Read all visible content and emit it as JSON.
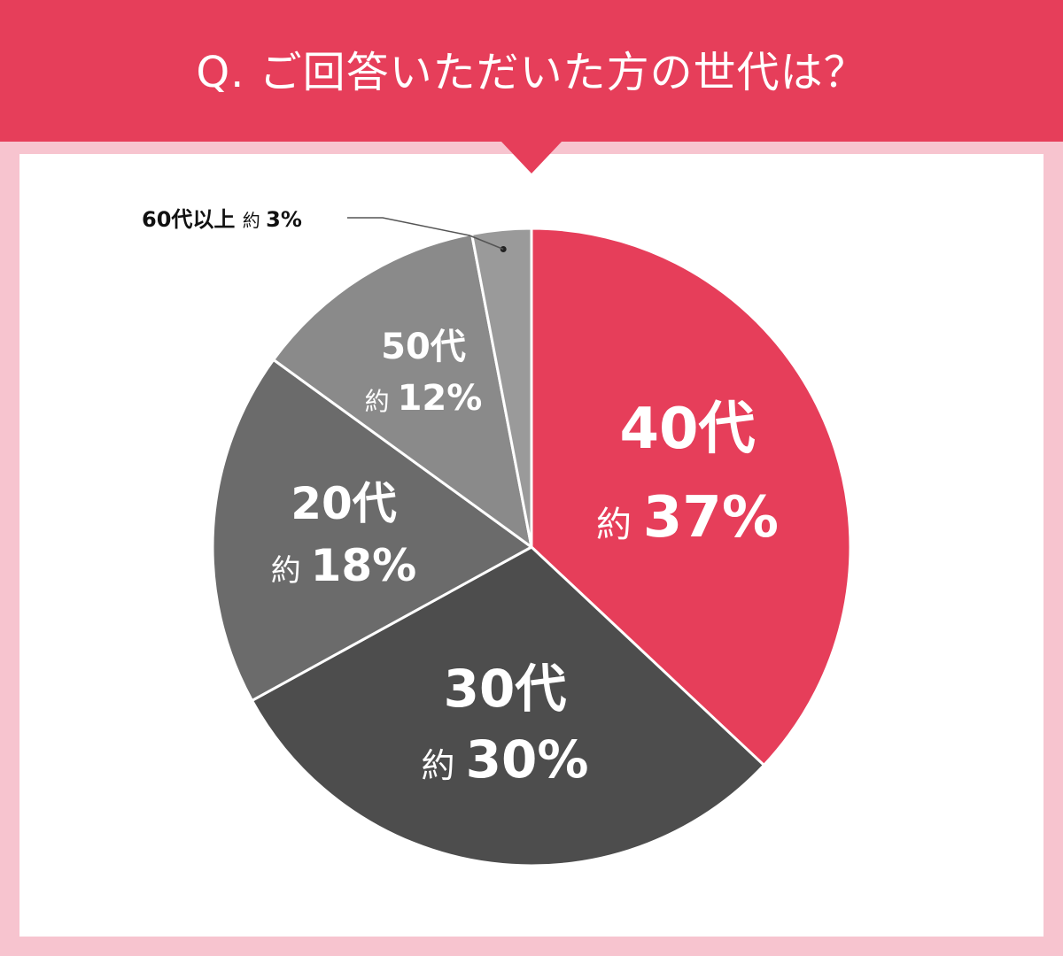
{
  "header": {
    "title": "Q. ご回答いただいた方の世代は？"
  },
  "colors": {
    "header": "#e63e5a",
    "frame": "#f7c4cf",
    "panel": "#ffffff"
  },
  "chart_data": {
    "type": "pie",
    "title": "Q. ご回答いただいた方の世代は？",
    "start": "12 o'clock",
    "direction": "clockwise",
    "slices": [
      {
        "label": "40代",
        "prefix": "約",
        "value": 37,
        "value_text": "37%",
        "color": "#e63e5a",
        "text_color": "#ffffff",
        "label_placement": "inside"
      },
      {
        "label": "30代",
        "prefix": "約",
        "value": 30,
        "value_text": "30%",
        "color": "#4d4d4d",
        "text_color": "#ffffff",
        "label_placement": "inside"
      },
      {
        "label": "20代",
        "prefix": "約",
        "value": 18,
        "value_text": "18%",
        "color": "#6b6b6b",
        "text_color": "#ffffff",
        "label_placement": "inside"
      },
      {
        "label": "50代",
        "prefix": "約",
        "value": 12,
        "value_text": "12%",
        "color": "#8a8a8a",
        "text_color": "#ffffff",
        "label_placement": "inside"
      },
      {
        "label": "60代以上",
        "prefix": "約",
        "value": 3,
        "value_text": "3%",
        "color": "#9a9a9a",
        "text_color": "#111111",
        "label_placement": "outside-callout"
      }
    ]
  }
}
